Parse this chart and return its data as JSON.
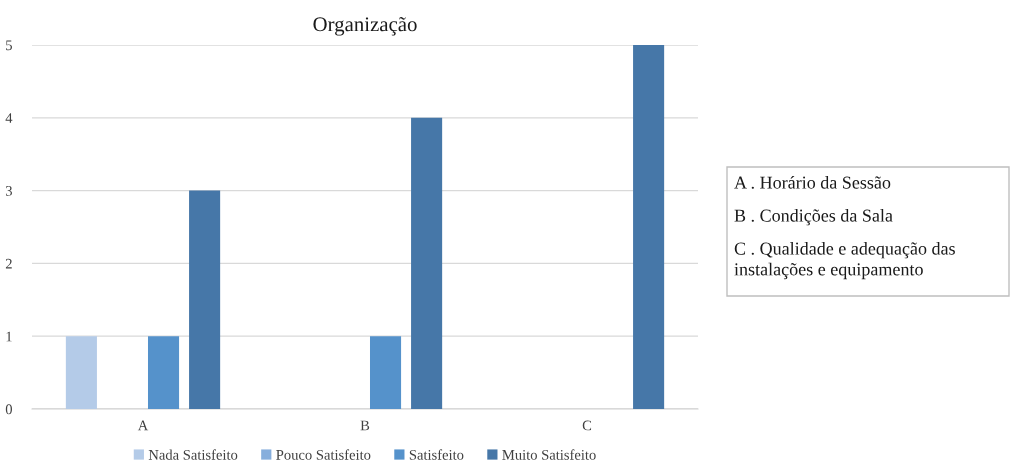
{
  "chart_data": {
    "type": "bar",
    "title": "Organização",
    "categories": [
      "A",
      "B",
      "C"
    ],
    "series": [
      {
        "name": "Nada Satisfeito",
        "color": "#b4cbe8",
        "values": [
          1,
          0,
          0
        ]
      },
      {
        "name": "Pouco Satisfeito",
        "color": "#86aedc",
        "values": [
          0,
          0,
          0
        ]
      },
      {
        "name": "Satisfeito",
        "color": "#5592cb",
        "values": [
          1,
          1,
          0
        ]
      },
      {
        "name": "Muito Satisfeito",
        "color": "#4677a8",
        "values": [
          3,
          4,
          5
        ]
      }
    ],
    "ylim": [
      0,
      5
    ],
    "yticks": [
      0,
      1,
      2,
      3,
      4,
      5
    ],
    "grid": "y",
    "legend": "bottom",
    "annotations": [
      "A . Horário da Sessão",
      "B . Condições da Sala",
      "C . Qualidade e adequação das instalações e equipamento"
    ]
  }
}
